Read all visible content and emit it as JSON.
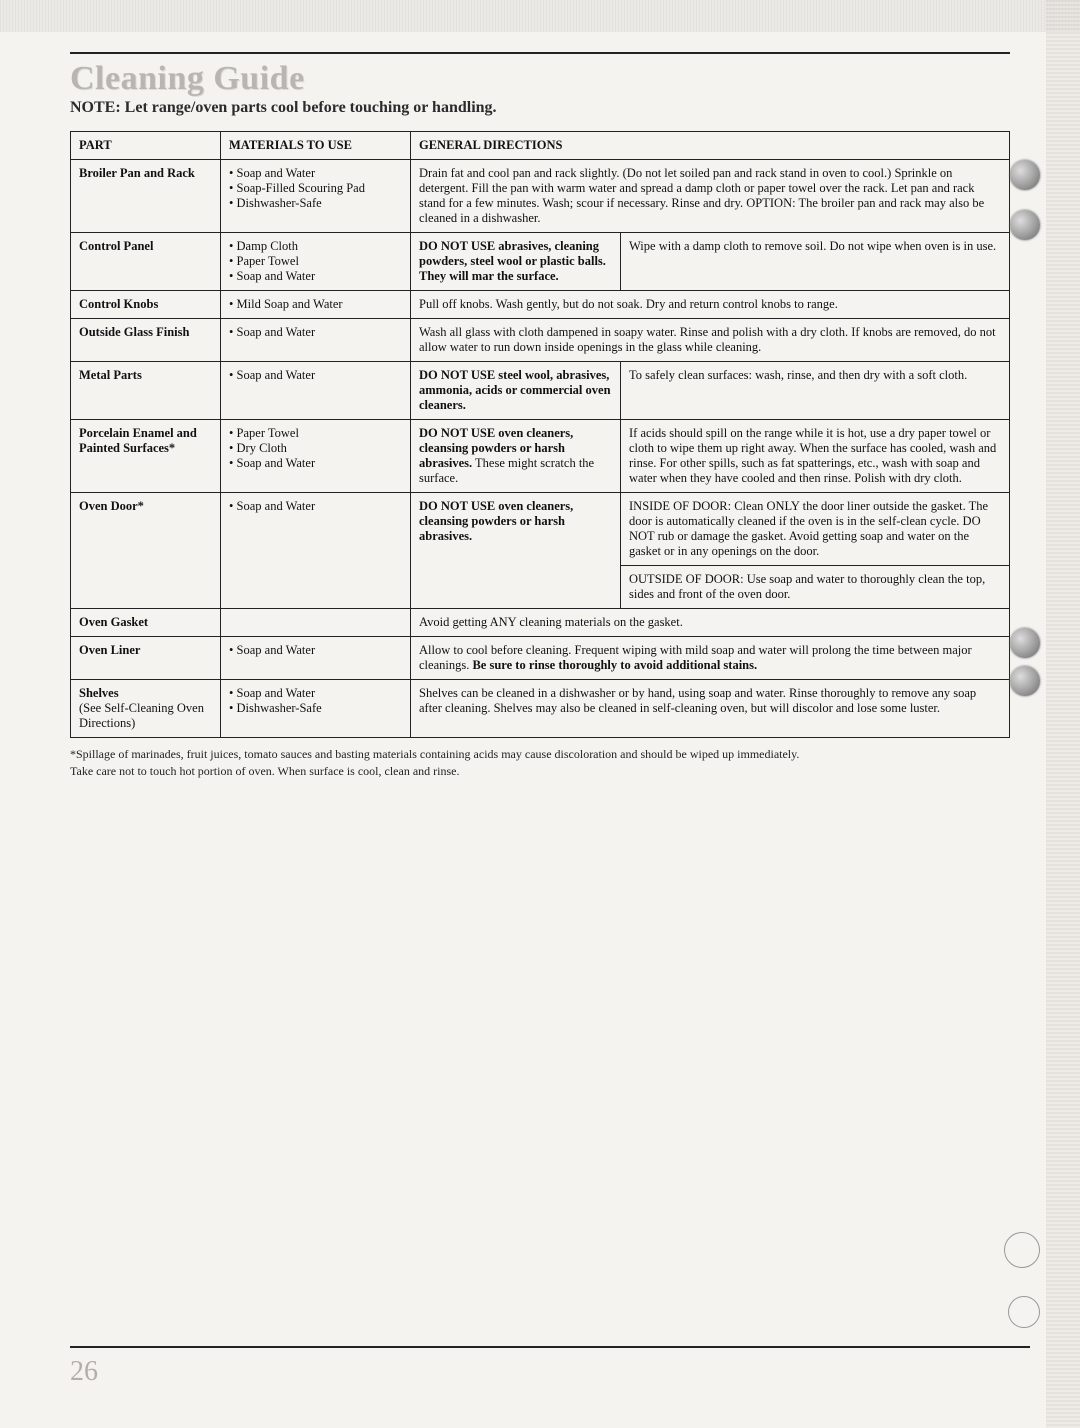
{
  "title": "Cleaning Guide",
  "note": "NOTE: Let range/oven parts cool before touching or handling.",
  "headers": {
    "part": "PART",
    "materials": "MATERIALS TO USE",
    "directions": "GENERAL DIRECTIONS"
  },
  "rows": {
    "broiler": {
      "part": "Broiler Pan and Rack",
      "mat": [
        "Soap and Water",
        "Soap-Filled Scouring Pad",
        "Dishwasher-Safe"
      ],
      "dir": "Drain fat and cool pan and rack slightly. (Do not let soiled pan and rack stand in oven to cool.) Sprinkle on detergent. Fill the pan with warm water and spread a damp cloth or paper towel over the rack. Let pan and rack stand for a few minutes. Wash; scour if necessary. Rinse and dry. OPTION: The broiler pan and rack may also be cleaned in a dishwasher."
    },
    "control_panel": {
      "part": "Control Panel",
      "mat": [
        "Damp Cloth",
        "Paper Towel",
        "Soap and Water"
      ],
      "warn": "DO NOT USE abrasives, cleaning powders, steel wool or plastic balls. They will mar the surface.",
      "dir": "Wipe with a damp cloth to remove soil. Do not wipe when oven is in use."
    },
    "control_knobs": {
      "part": "Control Knobs",
      "mat": [
        "Mild Soap and Water"
      ],
      "dir": "Pull off knobs. Wash gently, but do not soak. Dry and return control knobs to range."
    },
    "outside_glass": {
      "part": "Outside Glass Finish",
      "mat": [
        "Soap and Water"
      ],
      "dir": "Wash all glass with cloth dampened in soapy water. Rinse and polish with a dry cloth. If knobs are removed, do not allow water to run down inside openings in the glass while cleaning."
    },
    "metal": {
      "part": "Metal Parts",
      "mat": [
        "Soap and Water"
      ],
      "warn": "DO NOT USE steel wool, abrasives, ammonia, acids or commercial oven cleaners.",
      "dir": "To safely clean surfaces: wash, rinse, and then dry with a soft cloth."
    },
    "porcelain": {
      "part": "Porcelain Enamel and Painted Surfaces*",
      "mat": [
        "Paper Towel",
        "Dry Cloth",
        "Soap and Water"
      ],
      "warn": "DO NOT USE oven cleaners, cleansing powders or harsh abrasives. These might scratch the surface.",
      "dir": "If acids should spill on the range while it is hot, use a dry paper towel or cloth to wipe them up right away. When the surface has cooled, wash and rinse. For other spills, such as fat spatterings, etc., wash with soap and water when they have cooled and then rinse. Polish with dry cloth."
    },
    "oven_door": {
      "part": "Oven Door*",
      "mat": [
        "Soap and Water"
      ],
      "warn": "DO NOT USE oven cleaners, cleansing powders or harsh abrasives.",
      "dir_a": "INSIDE OF DOOR: Clean ONLY the door liner outside the gasket. The door is automatically cleaned if the oven is in the self-clean cycle. DO NOT rub or damage the gasket. Avoid getting soap and water on the gasket or in any openings on the door.",
      "dir_b": "OUTSIDE OF DOOR: Use soap and water to thoroughly clean the top, sides and front of the oven door."
    },
    "gasket": {
      "part": "Oven Gasket",
      "dir": "Avoid getting ANY cleaning materials on the gasket."
    },
    "liner": {
      "part": "Oven Liner",
      "mat": [
        "Soap and Water"
      ],
      "dir_a": "Allow to cool before cleaning. Frequent wiping with mild soap and water will prolong the time between major cleanings. ",
      "dir_b": "Be sure to rinse thoroughly to avoid additional stains."
    },
    "shelves": {
      "part_a": "Shelves",
      "part_b": "(See Self-Cleaning Oven Directions)",
      "mat": [
        "Soap and Water",
        "Dishwasher-Safe"
      ],
      "dir": "Shelves can be cleaned in a dishwasher or by hand, using soap and water. Rinse thoroughly to remove any soap after cleaning. Shelves may also be cleaned in self-cleaning oven, but will discolor and lose some luster."
    }
  },
  "footnote_a": "*Spillage of marinades, fruit juices, tomato sauces and basting materials containing acids may cause discoloration and should be wiped up immediately.",
  "footnote_b": "Take care not to touch hot portion of oven. When surface is cool, clean and rinse.",
  "page_number": "26"
}
